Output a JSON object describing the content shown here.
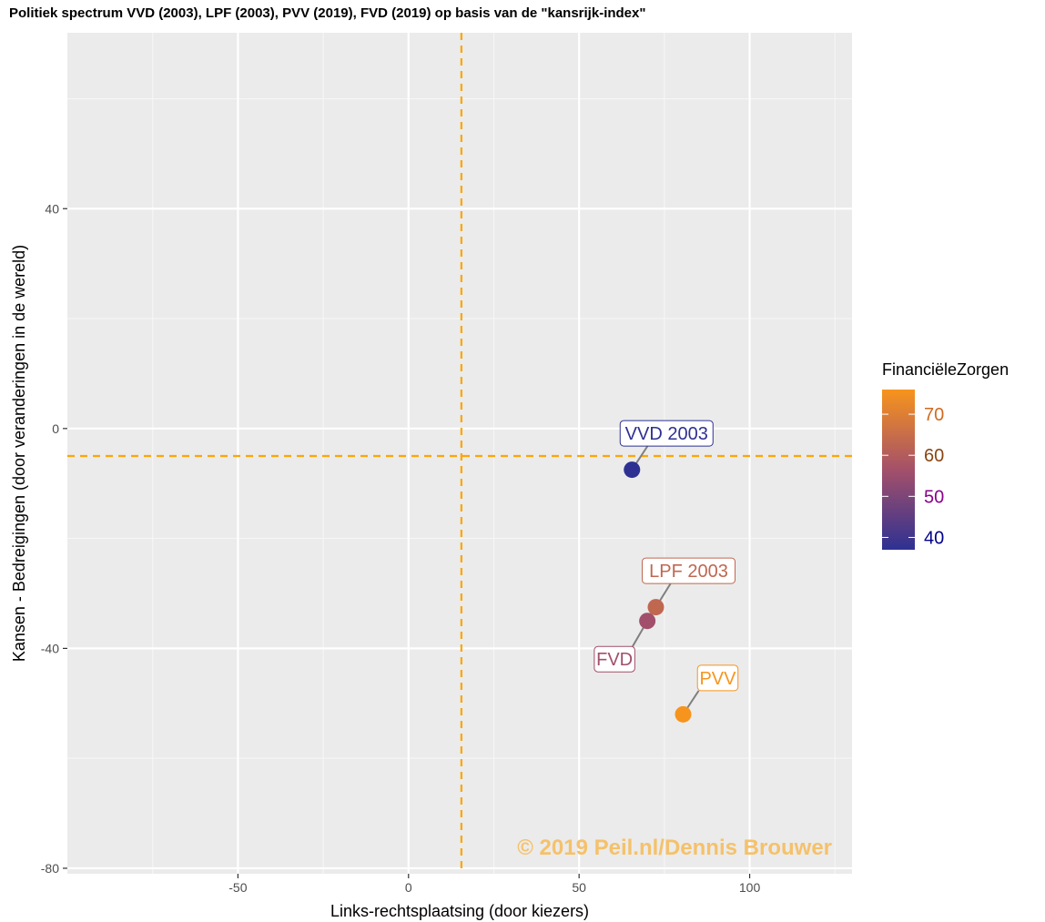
{
  "chart_data": {
    "type": "scatter",
    "title": "Politiek spectrum VVD (2003), LPF (2003), PVV (2019), FVD (2019) op basis van de \"kansrijk-index\"",
    "xlabel": "Links-rechtsplaatsing (door kiezers)",
    "ylabel": "Kansen - Bedreigingen (door veranderingen in de wereld)",
    "xlim": [
      -100,
      130
    ],
    "ylim": [
      -81,
      72
    ],
    "x_ticks": [
      -50,
      0,
      50,
      100
    ],
    "x_tick_labels": [
      "-50",
      "0",
      "50",
      "100"
    ],
    "y_ticks": [
      -80,
      -40,
      0,
      40
    ],
    "y_tick_labels": [
      "-80",
      "-40",
      "0",
      "40"
    ],
    "grid": true,
    "reference_lines": {
      "x": 15.5,
      "y": -5,
      "color": "#FFA500",
      "style": "dashed"
    },
    "points": [
      {
        "label": "VVD 2003",
        "x": 65.5,
        "y": -7.5,
        "FinanciëleZorgen": 37
      },
      {
        "label": "LPF 2003",
        "x": 72.5,
        "y": -32.5,
        "FinanciëleZorgen": 63
      },
      {
        "label": "FVD",
        "x": 70,
        "y": -35,
        "FinanciëleZorgen": 56
      },
      {
        "label": "PVV",
        "x": 80.5,
        "y": -52,
        "FinanciëleZorgen": 76
      }
    ],
    "legend": {
      "title": "FinanciëleZorgen",
      "placement": "right",
      "ticks": [
        40,
        50,
        60,
        70
      ],
      "tick_labels": [
        "40",
        "50",
        "60",
        "70"
      ],
      "tick_label_colors": [
        "#00008B",
        "#8B008B",
        "#8B4513",
        "#D2691E"
      ],
      "range": [
        37,
        76
      ],
      "gradient_low": "#2E3192",
      "gradient_mid": "#A4506A",
      "gradient_high": "#F7941D"
    },
    "watermark": "© 2019 Peil.nl/Dennis Brouwer"
  }
}
